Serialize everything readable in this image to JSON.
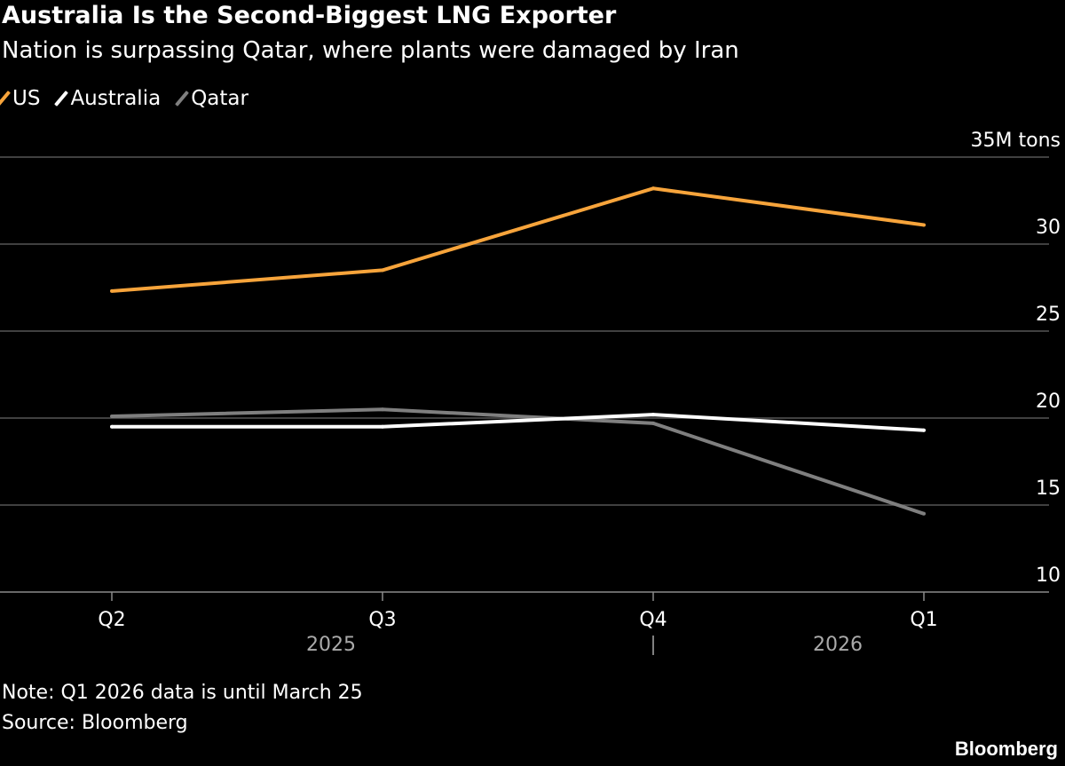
{
  "chart_data": {
    "type": "line",
    "title": "Australia Is the Second-Biggest LNG Exporter",
    "subtitle": "Nation is surpassing Qatar, where plants were damaged by Iran",
    "categories": [
      "Q2",
      "Q3",
      "Q4",
      "Q1"
    ],
    "year_labels": [
      "2025",
      "2026"
    ],
    "y_unit_label": "35M tons",
    "y_ticks": [
      10,
      15,
      20,
      25,
      30,
      35
    ],
    "y_tick_labels": [
      "10",
      "15",
      "20",
      "25",
      "30",
      "35M tons"
    ],
    "ylim": [
      10,
      35
    ],
    "grid": true,
    "legend_position": "top-left",
    "series": [
      {
        "name": "US",
        "color": "#f7a43b",
        "values": [
          27.3,
          28.5,
          33.2,
          31.1
        ]
      },
      {
        "name": "Australia",
        "color": "#ffffff",
        "values": [
          19.5,
          19.5,
          20.2,
          19.3
        ]
      },
      {
        "name": "Qatar",
        "color": "#7f7f7f",
        "values": [
          20.1,
          20.5,
          19.7,
          14.5
        ]
      }
    ]
  },
  "footer": {
    "note": "Note: Q1 2026 data is until March 25",
    "source": "Source: Bloomberg",
    "brand": "Bloomberg"
  }
}
